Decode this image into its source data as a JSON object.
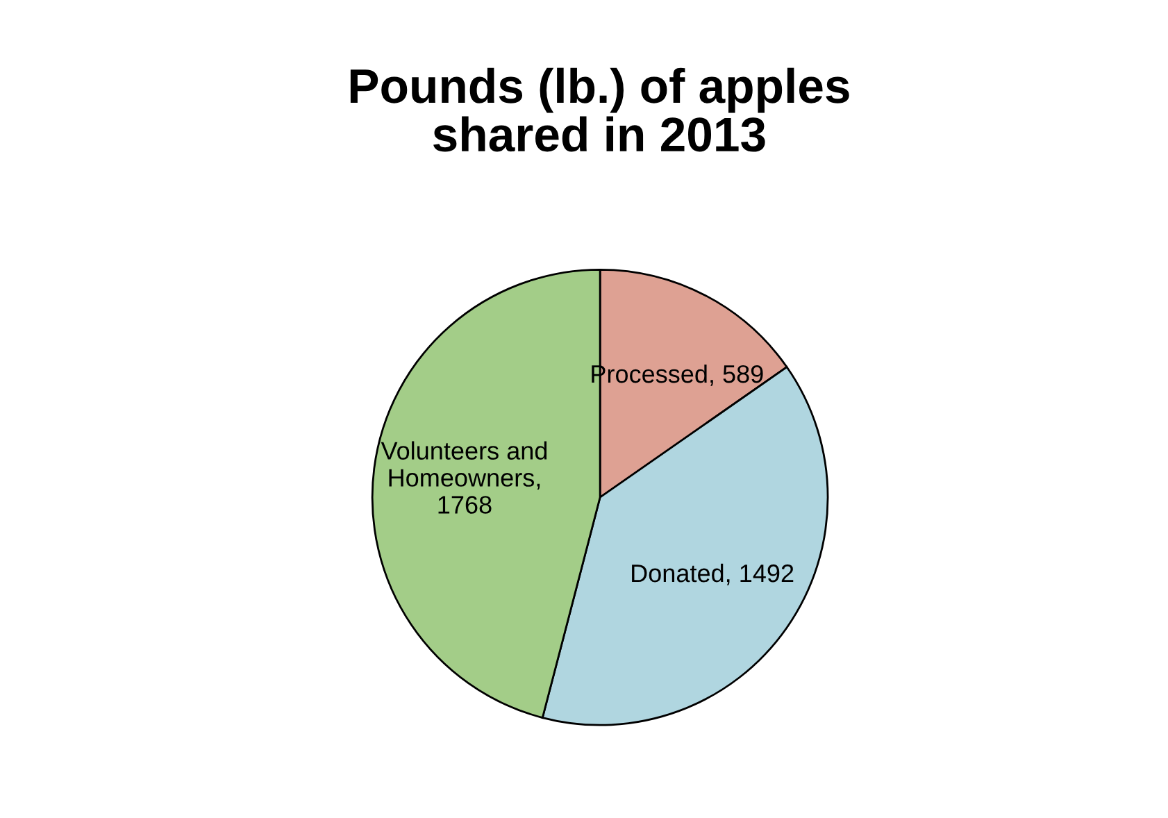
{
  "chart_data": {
    "type": "pie",
    "title": "Pounds (lb.) of apples\nshared in 2013",
    "values": [
      589,
      1492,
      1768
    ],
    "colors": [
      "#dea193",
      "#b0d6e0",
      "#a3cd88"
    ],
    "value_labels": [
      "Processed, 589",
      "Donated, 1492",
      "Volunteers and\nHomeowners,\n1768"
    ],
    "legend": false
  }
}
